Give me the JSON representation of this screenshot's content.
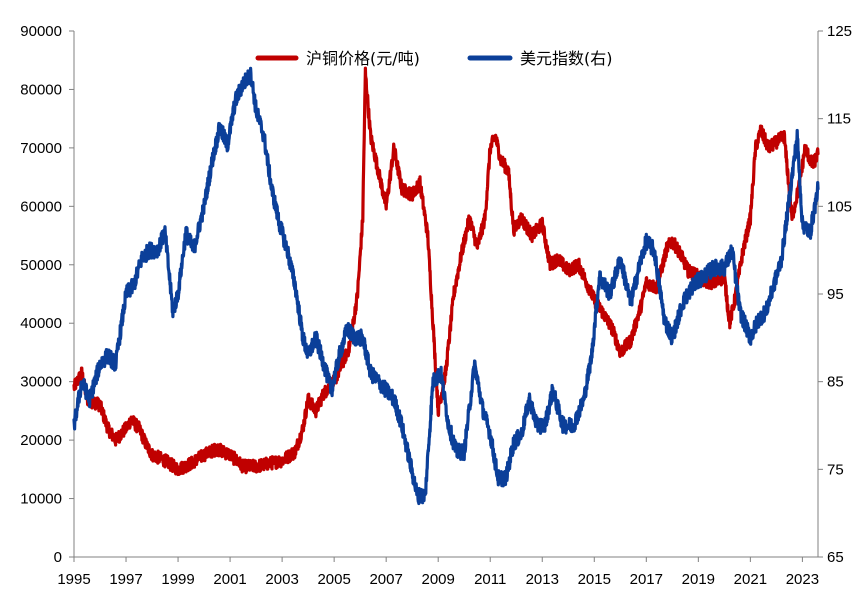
{
  "chart_data": {
    "type": "line",
    "title": "",
    "xlabel": "",
    "ylabel_left": "",
    "ylabel_right": "",
    "x_ticks": [
      "1995",
      "1997",
      "1999",
      "2001",
      "2003",
      "2005",
      "2007",
      "2009",
      "2011",
      "2013",
      "2015",
      "2017",
      "2019",
      "2021",
      "2023"
    ],
    "xlim": [
      1995.0,
      2023.6
    ],
    "y_left_ticks": [
      "0",
      "10000",
      "20000",
      "30000",
      "40000",
      "50000",
      "60000",
      "70000",
      "80000",
      "90000"
    ],
    "ylim_left": [
      0,
      90000
    ],
    "y_right_ticks": [
      "65",
      "75",
      "85",
      "95",
      "105",
      "115",
      "125"
    ],
    "ylim_right": [
      65,
      125
    ],
    "grid": false,
    "legend_position": "top",
    "series": [
      {
        "name": "沪铜价格(元/吨)",
        "axis": "left",
        "color": "#C00000",
        "points": [
          [
            1995.0,
            29000
          ],
          [
            1995.3,
            31500
          ],
          [
            1995.5,
            27000
          ],
          [
            1996.0,
            26000
          ],
          [
            1996.3,
            22000
          ],
          [
            1996.6,
            20000
          ],
          [
            1997.0,
            22000
          ],
          [
            1997.2,
            23500
          ],
          [
            1997.5,
            22000
          ],
          [
            1997.8,
            19000
          ],
          [
            1998.0,
            17500
          ],
          [
            1998.5,
            16500
          ],
          [
            1999.0,
            15000
          ],
          [
            1999.5,
            16000
          ],
          [
            2000.0,
            17500
          ],
          [
            2000.5,
            18500
          ],
          [
            2001.0,
            17500
          ],
          [
            2001.5,
            15500
          ],
          [
            2002.0,
            15500
          ],
          [
            2002.5,
            16000
          ],
          [
            2003.0,
            16500
          ],
          [
            2003.5,
            18000
          ],
          [
            2003.8,
            22000
          ],
          [
            2004.0,
            27000
          ],
          [
            2004.3,
            25000
          ],
          [
            2004.6,
            28000
          ],
          [
            2005.0,
            30000
          ],
          [
            2005.3,
            33000
          ],
          [
            2005.6,
            36000
          ],
          [
            2005.9,
            45000
          ],
          [
            2006.1,
            58000
          ],
          [
            2006.2,
            83000
          ],
          [
            2006.4,
            72000
          ],
          [
            2006.7,
            66000
          ],
          [
            2007.0,
            60000
          ],
          [
            2007.3,
            70000
          ],
          [
            2007.6,
            63000
          ],
          [
            2008.0,
            62000
          ],
          [
            2008.3,
            64000
          ],
          [
            2008.6,
            55000
          ],
          [
            2008.8,
            40000
          ],
          [
            2009.0,
            25000
          ],
          [
            2009.3,
            32000
          ],
          [
            2009.6,
            45000
          ],
          [
            2009.9,
            52000
          ],
          [
            2010.2,
            58000
          ],
          [
            2010.5,
            53000
          ],
          [
            2010.8,
            58000
          ],
          [
            2011.0,
            70000
          ],
          [
            2011.2,
            72000
          ],
          [
            2011.4,
            68000
          ],
          [
            2011.7,
            66000
          ],
          [
            2011.9,
            56000
          ],
          [
            2012.2,
            58000
          ],
          [
            2012.6,
            55000
          ],
          [
            2013.0,
            57000
          ],
          [
            2013.3,
            50000
          ],
          [
            2013.6,
            51000
          ],
          [
            2014.0,
            49000
          ],
          [
            2014.4,
            50000
          ],
          [
            2014.8,
            46000
          ],
          [
            2015.0,
            44000
          ],
          [
            2015.3,
            42000
          ],
          [
            2015.7,
            39000
          ],
          [
            2016.0,
            35000
          ],
          [
            2016.4,
            37000
          ],
          [
            2016.8,
            43000
          ],
          [
            2017.0,
            47000
          ],
          [
            2017.4,
            46000
          ],
          [
            2017.8,
            53000
          ],
          [
            2018.0,
            54000
          ],
          [
            2018.3,
            52000
          ],
          [
            2018.6,
            49000
          ],
          [
            2019.0,
            48000
          ],
          [
            2019.3,
            47000
          ],
          [
            2019.7,
            47000
          ],
          [
            2020.0,
            48000
          ],
          [
            2020.2,
            40000
          ],
          [
            2020.4,
            44000
          ],
          [
            2020.7,
            52000
          ],
          [
            2021.0,
            58000
          ],
          [
            2021.2,
            70000
          ],
          [
            2021.4,
            73000
          ],
          [
            2021.7,
            70000
          ],
          [
            2022.0,
            71000
          ],
          [
            2022.3,
            72000
          ],
          [
            2022.6,
            58000
          ],
          [
            2022.9,
            64000
          ],
          [
            2023.1,
            70000
          ],
          [
            2023.4,
            67000
          ],
          [
            2023.6,
            69000
          ]
        ]
      },
      {
        "name": "美元指数(右)",
        "axis": "right",
        "color": "#0B3F99",
        "points": [
          [
            1995.0,
            80
          ],
          [
            1995.3,
            85
          ],
          [
            1995.6,
            83
          ],
          [
            1996.0,
            87
          ],
          [
            1996.3,
            88
          ],
          [
            1996.6,
            87
          ],
          [
            1997.0,
            95
          ],
          [
            1997.3,
            96
          ],
          [
            1997.6,
            99
          ],
          [
            1997.9,
            100
          ],
          [
            1998.2,
            100
          ],
          [
            1998.5,
            102
          ],
          [
            1998.8,
            93
          ],
          [
            1999.0,
            95
          ],
          [
            1999.3,
            102
          ],
          [
            1999.6,
            100
          ],
          [
            2000.0,
            105
          ],
          [
            2000.3,
            110
          ],
          [
            2000.6,
            114
          ],
          [
            2000.9,
            112
          ],
          [
            2001.2,
            117
          ],
          [
            2001.5,
            119
          ],
          [
            2001.8,
            120
          ],
          [
            2002.0,
            116
          ],
          [
            2002.3,
            113
          ],
          [
            2002.6,
            107
          ],
          [
            2002.9,
            103
          ],
          [
            2003.2,
            100
          ],
          [
            2003.5,
            96
          ],
          [
            2003.8,
            90
          ],
          [
            2004.0,
            88
          ],
          [
            2004.3,
            90
          ],
          [
            2004.6,
            87
          ],
          [
            2004.9,
            84
          ],
          [
            2005.2,
            88
          ],
          [
            2005.5,
            91
          ],
          [
            2005.8,
            90
          ],
          [
            2006.1,
            90
          ],
          [
            2006.4,
            86
          ],
          [
            2006.7,
            85
          ],
          [
            2007.0,
            84
          ],
          [
            2007.3,
            83
          ],
          [
            2007.6,
            80
          ],
          [
            2007.9,
            76
          ],
          [
            2008.2,
            72
          ],
          [
            2008.5,
            72
          ],
          [
            2008.8,
            85
          ],
          [
            2009.1,
            86
          ],
          [
            2009.4,
            80
          ],
          [
            2009.7,
            77
          ],
          [
            2010.0,
            77
          ],
          [
            2010.4,
            87
          ],
          [
            2010.7,
            82
          ],
          [
            2011.0,
            79
          ],
          [
            2011.3,
            74
          ],
          [
            2011.6,
            74
          ],
          [
            2011.9,
            78
          ],
          [
            2012.2,
            79
          ],
          [
            2012.5,
            83
          ],
          [
            2012.8,
            80
          ],
          [
            2013.1,
            80
          ],
          [
            2013.4,
            84
          ],
          [
            2013.8,
            80
          ],
          [
            2014.2,
            80
          ],
          [
            2014.6,
            83
          ],
          [
            2014.9,
            88
          ],
          [
            2015.2,
            97
          ],
          [
            2015.6,
            95
          ],
          [
            2016.0,
            99
          ],
          [
            2016.4,
            94
          ],
          [
            2016.8,
            99
          ],
          [
            2017.0,
            101
          ],
          [
            2017.3,
            100
          ],
          [
            2017.7,
            92
          ],
          [
            2018.0,
            90
          ],
          [
            2018.4,
            94
          ],
          [
            2018.8,
            96
          ],
          [
            2019.2,
            97
          ],
          [
            2019.6,
            98
          ],
          [
            2020.0,
            98
          ],
          [
            2020.3,
            100
          ],
          [
            2020.6,
            93
          ],
          [
            2021.0,
            90
          ],
          [
            2021.3,
            92
          ],
          [
            2021.6,
            93
          ],
          [
            2021.9,
            96
          ],
          [
            2022.2,
            99
          ],
          [
            2022.5,
            106
          ],
          [
            2022.8,
            113
          ],
          [
            2023.0,
            103
          ],
          [
            2023.3,
            102
          ],
          [
            2023.6,
            107
          ]
        ]
      }
    ]
  }
}
